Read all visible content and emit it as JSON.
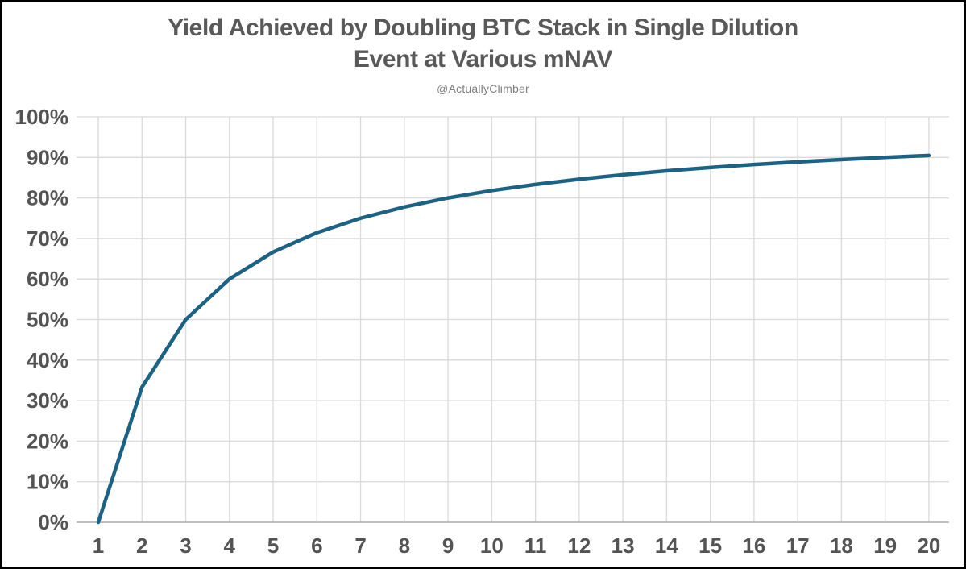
{
  "header": {
    "title_lines": [
      "Yield Achieved by Doubling BTC Stack in Single Dilution",
      "Event at Various mNAV"
    ],
    "subtitle": "@ActuallyClimber",
    "title_color": "#595959",
    "subtitle_color": "#7f7f7f"
  },
  "chart_data": {
    "type": "line",
    "title": "Yield Achieved by Doubling BTC Stack in Single Dilution Event at Various mNAV",
    "subtitle": "@ActuallyClimber",
    "categories": [
      1,
      2,
      3,
      4,
      5,
      6,
      7,
      8,
      9,
      10,
      11,
      12,
      13,
      14,
      15,
      16,
      17,
      18,
      19,
      20
    ],
    "series": [
      {
        "name": "Yield",
        "color": "#1c6284",
        "values": [
          0,
          33.33,
          50,
          60,
          66.67,
          71.43,
          75,
          77.78,
          80,
          81.82,
          83.33,
          84.62,
          85.71,
          86.67,
          87.5,
          88.24,
          88.89,
          89.47,
          90,
          90.48
        ]
      }
    ],
    "xlabel": "",
    "ylabel": "",
    "ylim": [
      0,
      100
    ],
    "y_tick_step": 10,
    "y_tick_suffix": "%",
    "y_tick_labels": [
      "0%",
      "10%",
      "20%",
      "30%",
      "40%",
      "50%",
      "60%",
      "70%",
      "80%",
      "90%",
      "100%"
    ],
    "grid": true,
    "legend": false,
    "colors": {
      "line": "#1c6284",
      "gridline": "#dadada",
      "axis_line": "#bfbfbf",
      "tick_label": "#545454",
      "background": "#ffffff",
      "border": "#000000"
    }
  }
}
